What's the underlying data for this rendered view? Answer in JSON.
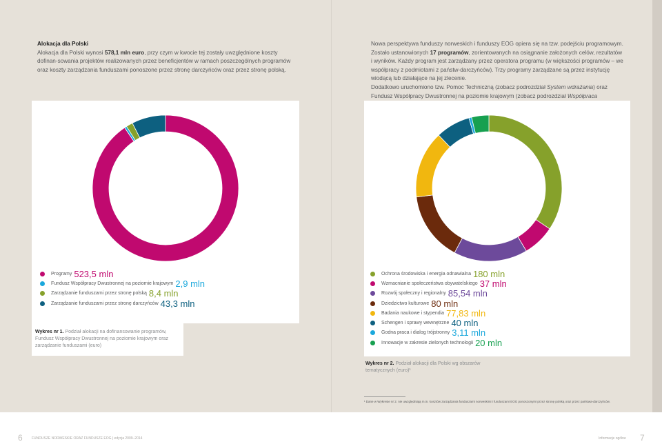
{
  "left_intro": {
    "title": "Alokacja dla Polski",
    "p1": "Alokacja dla Polski wynosi ",
    "amount": "578,1 mln euro",
    "p2": ", przy czym w kwocie tej zostały uwzględnione koszty dofinan-sowania projektów realizowanych przez beneficjentów w ramach poszczególnych programów oraz koszty zarządzania funduszami ponoszone przez stronę darczyńców oraz przez stronę polską."
  },
  "right_intro": {
    "p1a": "Nowa perspektywa funduszy norweskich i funduszy EOG opiera się na tzw. podejściu programowym. Zostało ustanowionych ",
    "p1b": "17 programów",
    "p1c": ", zorientowanych na osiągnanie założonych celów, rezultatów i wyników. Każdy program jest zarządzany przez operatora programu (w większości programów – we współpracy z podmiotami z państw-darczyńców). Trzy programy zarządzane są przez instytucję wiodącą lub działające na jej zlecenie.",
    "p2a": "Dodatkowo uruchomiono tzw. Pomoc Techniczną (zobacz podrozdział ",
    "p2b": "System wdrażania",
    "p2c": ") oraz Fundusz Współpracy Dwustronnej na poziomie krajowym (zobacz podrozdział ",
    "p2d": "Współpraca dwustronna",
    "p2e": ")."
  },
  "chart_data": [
    {
      "type": "pie",
      "title": "Podział alokacji na dofinansowanie programów, Fundusz Współpracy Dwustronnej na poziomie krajowym oraz zarządzanie funduszami (euro)",
      "caption_label": "Wykres nr 1.",
      "caption_text": "Podział alokacji na dofinansowanie programów, Fundusz Współpracy Dwustronnej na poziomie krajowym oraz zarządzanie funduszami (euro)",
      "unit": "mln",
      "series": [
        {
          "name": "Programy",
          "value": 523.5,
          "value_label": "523,5 mln",
          "color": "#c0096f"
        },
        {
          "name": "Fundusz Współpracy Dwustronnej na poziomie krajowym",
          "value": 2.9,
          "value_label": "2,9 mln",
          "color": "#1ba8dc"
        },
        {
          "name": "Zarządzanie funduszami przez stronę polską",
          "value": 8.4,
          "value_label": "8,4 mln",
          "color": "#86a12b"
        },
        {
          "name": "Zarządzanie funduszami przez stronę darczyńców",
          "value": 43.3,
          "value_label": "43,3 mln",
          "color": "#0d6080"
        }
      ]
    },
    {
      "type": "pie",
      "title": "Podział alokacji dla Polski wg obszarów tematycznych (euro)",
      "caption_label": "Wykres nr 2.",
      "caption_text": "Podział alokacji dla Polski wg obszarów tematycznych (euro)¹",
      "unit": "mln",
      "series": [
        {
          "name": "Ochrona środowiska i energia odnawialna",
          "value": 180,
          "value_label": "180 mln",
          "color": "#86a12b"
        },
        {
          "name": "Wzmacnianie społeczeństwa obywatelskiego",
          "value": 37,
          "value_label": "37 mln",
          "color": "#c0096f"
        },
        {
          "name": "Rozwój społeczny i regionalny",
          "value": 85.54,
          "value_label": "85,54 mln",
          "color": "#6d4a9b"
        },
        {
          "name": "Dziedzictwo kulturowe",
          "value": 80,
          "value_label": "80 mln",
          "color": "#6b2a0c"
        },
        {
          "name": "Badania naukowe i stypendia",
          "value": 77.83,
          "value_label": "77,83 mln",
          "color": "#f1b70f"
        },
        {
          "name": "Schengen i sprawy wewnętrzne",
          "value": 40,
          "value_label": "40 mln",
          "color": "#0d6080"
        },
        {
          "name": "Godna praca i dialog trójstronny",
          "value": 3.11,
          "value_label": "3,11 mln",
          "color": "#1ba8dc"
        },
        {
          "name": "Innowacje w zakresie zielonych technologii",
          "value": 20,
          "value_label": "20 mln",
          "color": "#17a050"
        }
      ]
    }
  ],
  "footnote": "¹ Dane w Wykresie nr 2. nie uwzględniają m.in. kosztów zarządzania funduszami norweskimi i funduszami EOG ponoszonymi przez stronę polską oraz przez państwa-darczyńców.",
  "footer": {
    "page_left": "6",
    "running_left": "FUNDUSZE NORWESKIE ORAZ FUNDUSZE EOG  |  edycja 2009–2014",
    "running_right": "Informacje ogólne",
    "page_right": "7"
  }
}
